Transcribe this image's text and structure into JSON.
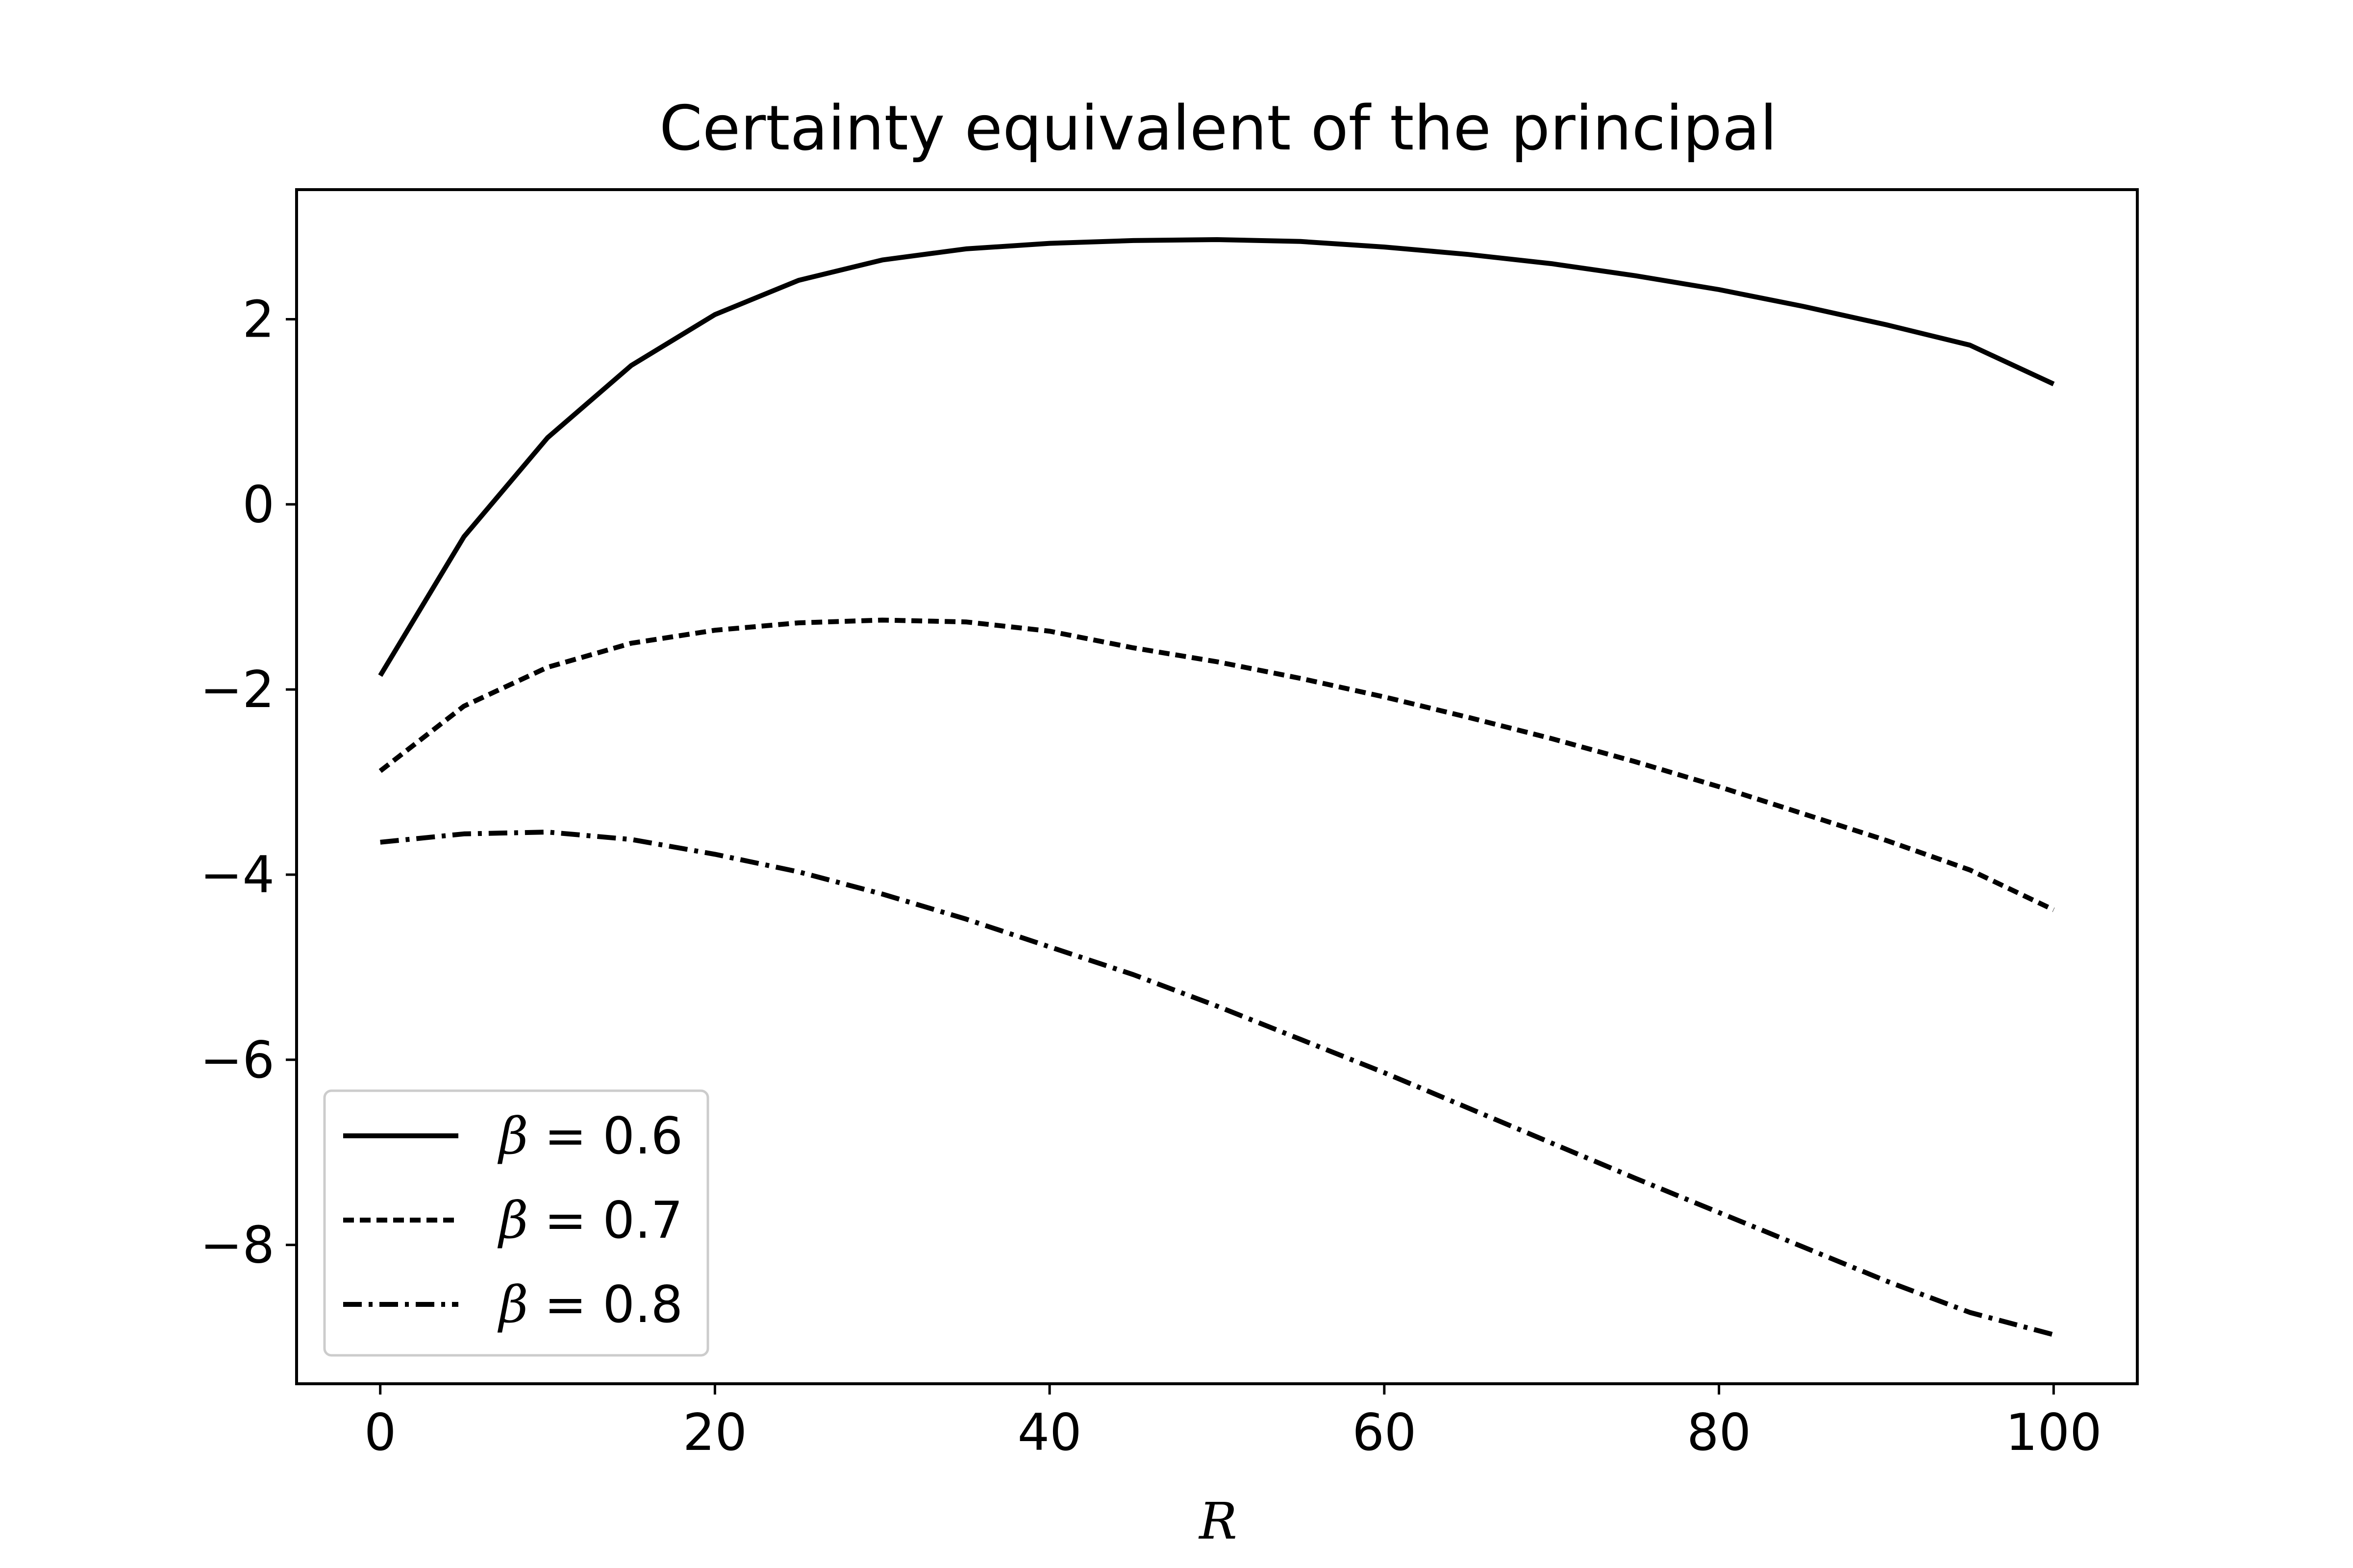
{
  "chart_data": {
    "type": "line",
    "title": "Certainty equivalent of the principal",
    "xlabel": "R",
    "ylabel": "",
    "xlim": [
      -5,
      105
    ],
    "ylim": [
      -9.5,
      3.4
    ],
    "xticks": [
      0,
      20,
      40,
      60,
      80,
      100
    ],
    "xtick_labels": [
      "0",
      "20",
      "40",
      "60",
      "80",
      "100"
    ],
    "yticks": [
      2,
      0,
      -2,
      -4,
      -6,
      -8
    ],
    "ytick_labels": [
      "2",
      "0",
      "−2",
      "−4",
      "−6",
      "−8"
    ],
    "grid": false,
    "legend_position": "lower-left",
    "line_color": "#000000",
    "x": [
      0,
      5,
      10,
      15,
      20,
      25,
      30,
      35,
      40,
      45,
      50,
      55,
      60,
      65,
      70,
      75,
      80,
      85,
      90,
      95,
      100
    ],
    "series": [
      {
        "name": "β = 0.6",
        "legend_symbol": "β",
        "legend_value": "= 0.6",
        "style": "solid",
        "values": [
          -1.85,
          -0.35,
          0.72,
          1.5,
          2.05,
          2.42,
          2.64,
          2.76,
          2.82,
          2.85,
          2.86,
          2.84,
          2.78,
          2.7,
          2.6,
          2.47,
          2.32,
          2.14,
          1.94,
          1.72,
          1.3
        ]
      },
      {
        "name": "β = 0.7",
        "legend_symbol": "β",
        "legend_value": "= 0.7",
        "style": "dashed",
        "values": [
          -2.88,
          -2.18,
          -1.76,
          -1.5,
          -1.36,
          -1.28,
          -1.25,
          -1.27,
          -1.37,
          -1.55,
          -1.7,
          -1.88,
          -2.08,
          -2.3,
          -2.53,
          -2.78,
          -3.05,
          -3.34,
          -3.63,
          -3.95,
          -4.38
        ]
      },
      {
        "name": "β = 0.8",
        "legend_symbol": "β",
        "legend_value": "= 0.8",
        "style": "dashdot",
        "values": [
          -3.65,
          -3.56,
          -3.54,
          -3.62,
          -3.78,
          -3.97,
          -4.21,
          -4.48,
          -4.78,
          -5.08,
          -5.42,
          -5.78,
          -6.14,
          -6.52,
          -6.9,
          -7.28,
          -7.65,
          -8.02,
          -8.39,
          -8.73,
          -8.97
        ]
      }
    ]
  }
}
